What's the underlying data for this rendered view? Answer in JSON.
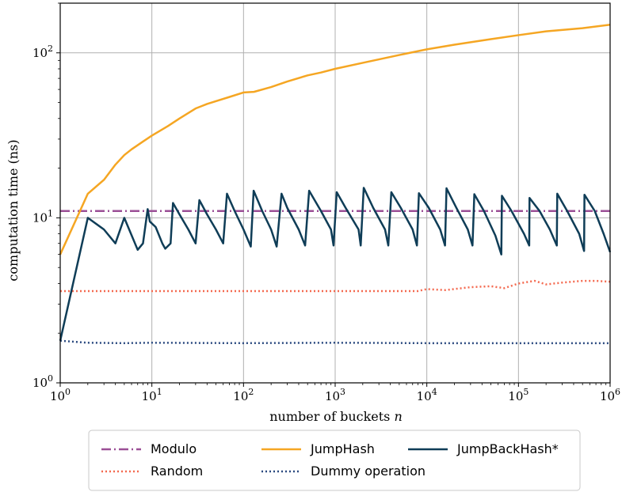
{
  "chart_data": {
    "type": "line",
    "xlabel_text": "number of buckets",
    "xlabel_var": "n",
    "ylabel": "computation time (ns)",
    "x_scale": "log",
    "y_scale": "log",
    "xlim": [
      1,
      1000000
    ],
    "ylim": [
      1,
      200
    ],
    "grid": true,
    "legend_position": "bottom",
    "x_ticks": [
      {
        "value": 1,
        "base": "10",
        "exp": "0"
      },
      {
        "value": 10,
        "base": "10",
        "exp": "1"
      },
      {
        "value": 100,
        "base": "10",
        "exp": "2"
      },
      {
        "value": 1000,
        "base": "10",
        "exp": "3"
      },
      {
        "value": 10000,
        "base": "10",
        "exp": "4"
      },
      {
        "value": 100000,
        "base": "10",
        "exp": "5"
      },
      {
        "value": 1000000,
        "base": "10",
        "exp": "6"
      }
    ],
    "y_ticks": [
      {
        "value": 1,
        "base": "10",
        "exp": "0"
      },
      {
        "value": 10,
        "base": "10",
        "exp": "1"
      },
      {
        "value": 100,
        "base": "10",
        "exp": "2"
      }
    ],
    "series": [
      {
        "name": "Modulo",
        "color": "#9b4f96",
        "style": "dashdot",
        "points": [
          [
            1,
            11.0
          ],
          [
            1000000,
            11.0
          ]
        ]
      },
      {
        "name": "Random",
        "color": "#f46a50",
        "style": "dotted",
        "points": [
          [
            1,
            3.6
          ],
          [
            10,
            3.6
          ],
          [
            100,
            3.6
          ],
          [
            1000,
            3.6
          ],
          [
            8000,
            3.6
          ],
          [
            10000,
            3.7
          ],
          [
            16000,
            3.65
          ],
          [
            30000,
            3.8
          ],
          [
            50000,
            3.85
          ],
          [
            70000,
            3.75
          ],
          [
            100000,
            4.0
          ],
          [
            150000,
            4.15
          ],
          [
            200000,
            3.95
          ],
          [
            300000,
            4.05
          ],
          [
            500000,
            4.15
          ],
          [
            700000,
            4.15
          ],
          [
            1000000,
            4.1
          ]
        ]
      },
      {
        "name": "JumpHash",
        "color": "#f5a623",
        "style": "solid",
        "points": [
          [
            1,
            6.0
          ],
          [
            2,
            14.0
          ],
          [
            3,
            17.0
          ],
          [
            4,
            21.0
          ],
          [
            5,
            24.0
          ],
          [
            6,
            26.0
          ],
          [
            8,
            29.0
          ],
          [
            10,
            31.5
          ],
          [
            15,
            36.0
          ],
          [
            20,
            40.0
          ],
          [
            30,
            46.0
          ],
          [
            40,
            49.0
          ],
          [
            70,
            54.0
          ],
          [
            100,
            57.5
          ],
          [
            130,
            58.0
          ],
          [
            200,
            62.0
          ],
          [
            300,
            67.0
          ],
          [
            500,
            73.0
          ],
          [
            700,
            76.0
          ],
          [
            1000,
            80.0
          ],
          [
            2000,
            87.0
          ],
          [
            5000,
            97.0
          ],
          [
            10000,
            105.0
          ],
          [
            20000,
            112.0
          ],
          [
            50000,
            121.0
          ],
          [
            100000,
            128.0
          ],
          [
            200000,
            135.0
          ],
          [
            500000,
            141.0
          ],
          [
            1000000,
            148.0
          ]
        ]
      },
      {
        "name": "Dummy operation",
        "color": "#2b4a80",
        "style": "dotted",
        "points": [
          [
            1,
            1.8
          ],
          [
            2,
            1.75
          ],
          [
            5,
            1.74
          ],
          [
            10,
            1.75
          ],
          [
            100,
            1.74
          ],
          [
            1000,
            1.75
          ],
          [
            10000,
            1.74
          ],
          [
            100000,
            1.74
          ],
          [
            1000000,
            1.74
          ]
        ]
      },
      {
        "name": "JumpBackHash*",
        "color": "#0f3d57",
        "style": "solid",
        "points": [
          [
            1,
            1.8
          ],
          [
            2,
            10.0
          ],
          [
            3,
            8.5
          ],
          [
            4,
            7.0
          ],
          [
            5,
            10.0
          ],
          [
            7,
            6.4
          ],
          [
            8,
            7.0
          ],
          [
            9,
            11.3
          ],
          [
            9.5,
            9.5
          ],
          [
            11,
            8.8
          ],
          [
            13,
            7.0
          ],
          [
            14,
            6.5
          ],
          [
            16,
            7.0
          ],
          [
            17,
            12.3
          ],
          [
            20,
            10.5
          ],
          [
            25,
            8.5
          ],
          [
            30,
            7.0
          ],
          [
            33,
            12.8
          ],
          [
            40,
            10.5
          ],
          [
            50,
            8.5
          ],
          [
            60,
            7.0
          ],
          [
            66,
            14.0
          ],
          [
            80,
            11.0
          ],
          [
            100,
            8.5
          ],
          [
            120,
            6.7
          ],
          [
            129,
            14.6
          ],
          [
            160,
            11.0
          ],
          [
            200,
            8.5
          ],
          [
            230,
            6.7
          ],
          [
            260,
            14.0
          ],
          [
            300,
            11.5
          ],
          [
            400,
            8.5
          ],
          [
            470,
            6.8
          ],
          [
            520,
            14.6
          ],
          [
            700,
            11.0
          ],
          [
            900,
            8.5
          ],
          [
            960,
            6.8
          ],
          [
            1040,
            14.3
          ],
          [
            1300,
            11.5
          ],
          [
            1800,
            8.5
          ],
          [
            1900,
            6.8
          ],
          [
            2050,
            15.2
          ],
          [
            2600,
            11.5
          ],
          [
            3500,
            8.5
          ],
          [
            3800,
            6.8
          ],
          [
            4100,
            14.3
          ],
          [
            5200,
            11.5
          ],
          [
            7000,
            8.5
          ],
          [
            7800,
            6.8
          ],
          [
            8200,
            14.1
          ],
          [
            10500,
            11.5
          ],
          [
            14000,
            8.5
          ],
          [
            15800,
            6.8
          ],
          [
            16400,
            15.1
          ],
          [
            21000,
            11.5
          ],
          [
            28000,
            8.5
          ],
          [
            31500,
            6.8
          ],
          [
            33000,
            13.9
          ],
          [
            42000,
            11.0
          ],
          [
            56000,
            7.8
          ],
          [
            65000,
            6.0
          ],
          [
            66000,
            13.6
          ],
          [
            84000,
            11.0
          ],
          [
            115000,
            8.0
          ],
          [
            131000,
            6.8
          ],
          [
            132000,
            13.2
          ],
          [
            170000,
            11.0
          ],
          [
            220000,
            8.5
          ],
          [
            262000,
            6.8
          ],
          [
            265000,
            14.0
          ],
          [
            340000,
            11.0
          ],
          [
            460000,
            8.0
          ],
          [
            520000,
            6.3
          ],
          [
            525000,
            13.8
          ],
          [
            680000,
            11.0
          ],
          [
            850000,
            8.0
          ],
          [
            1000000,
            6.2
          ]
        ]
      }
    ],
    "legend": {
      "columns": [
        [
          "Modulo",
          "Random"
        ],
        [
          "JumpHash",
          "Dummy operation"
        ],
        [
          "JumpBackHash*"
        ]
      ]
    }
  }
}
